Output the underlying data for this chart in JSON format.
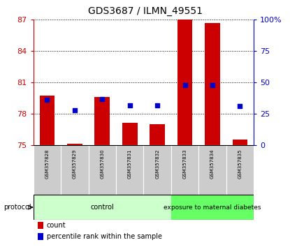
{
  "title": "GDS3687 / ILMN_49551",
  "samples": [
    "GSM357828",
    "GSM357829",
    "GSM357830",
    "GSM357831",
    "GSM357832",
    "GSM357833",
    "GSM357834",
    "GSM357835"
  ],
  "red_bar_tops": [
    79.7,
    75.1,
    79.6,
    77.1,
    77.0,
    87.0,
    86.7,
    75.5
  ],
  "red_bar_bottom": 75.0,
  "blue_values_left": [
    79.3,
    78.3,
    79.4,
    78.8,
    78.8,
    80.7,
    80.7,
    78.7
  ],
  "ylim_left": [
    75,
    87
  ],
  "yticks_left": [
    75,
    78,
    81,
    84,
    87
  ],
  "ylim_right": [
    0,
    100
  ],
  "yticks_right": [
    0,
    25,
    50,
    75,
    100
  ],
  "yticklabels_right": [
    "0",
    "25",
    "50",
    "75",
    "100%"
  ],
  "bar_width": 0.55,
  "red_color": "#cc0000",
  "blue_color": "#0000cc",
  "n_control": 5,
  "n_diabetes": 3,
  "control_label": "control",
  "diabetes_label": "exposure to maternal diabetes",
  "control_color": "#ccffcc",
  "diabetes_color": "#66ff66",
  "protocol_label": "protocol",
  "legend_count_label": "count",
  "legend_pct_label": "percentile rank within the sample",
  "title_fontsize": 10,
  "tick_fontsize": 8,
  "sample_fontsize": 5,
  "protocol_fontsize": 7,
  "legend_fontsize": 7
}
